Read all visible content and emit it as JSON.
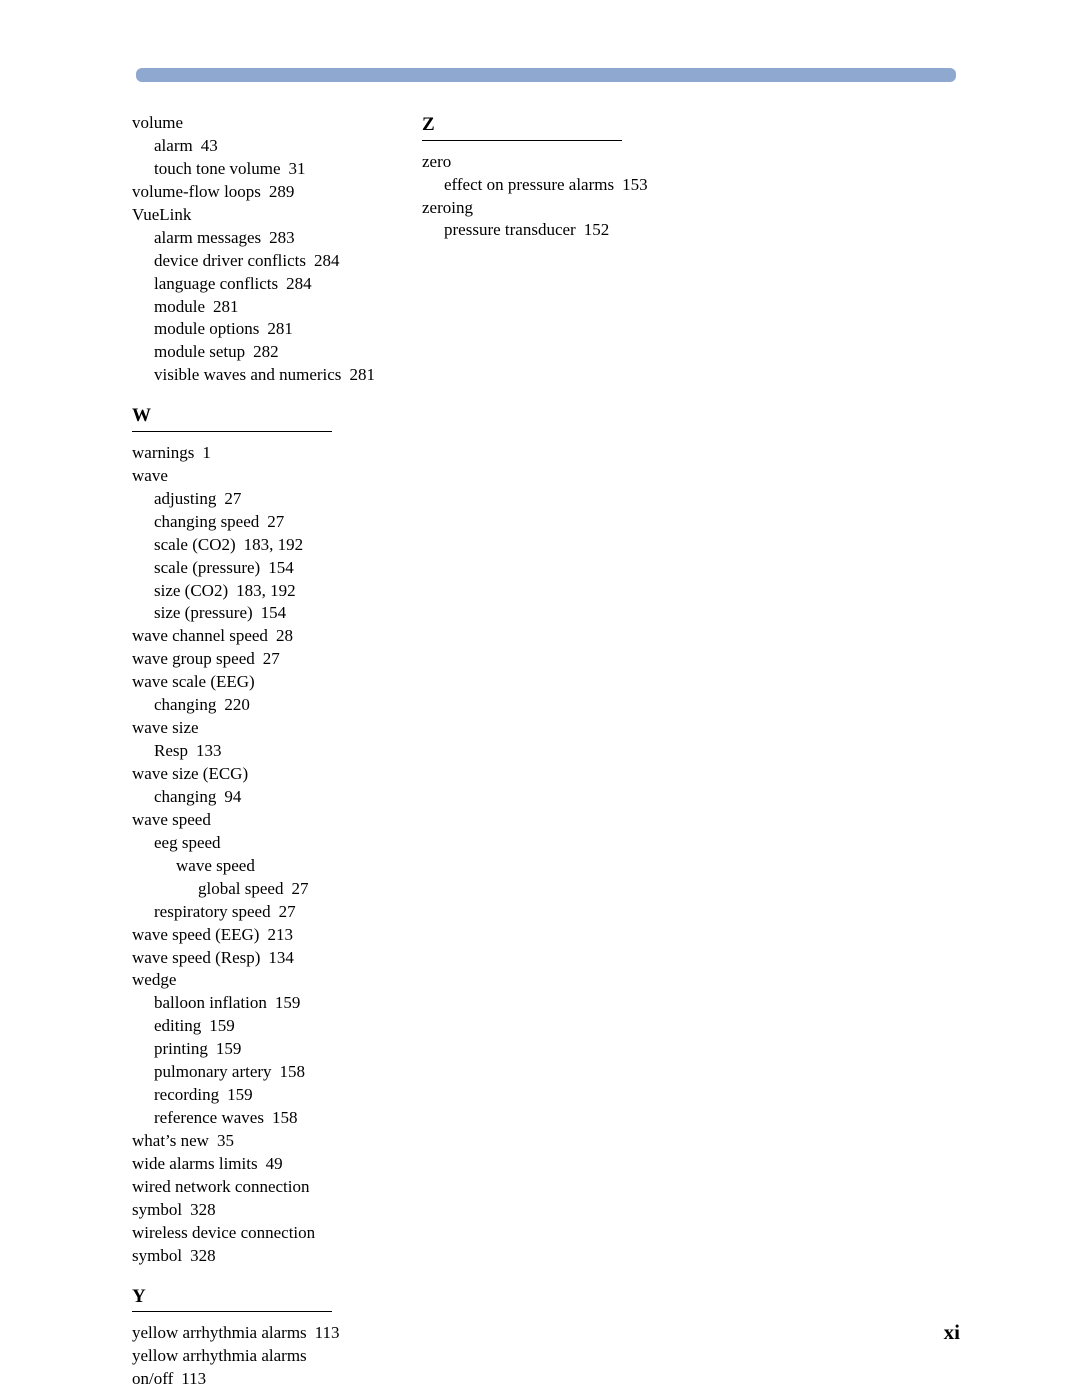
{
  "header_bar_color": "#8fa8d0",
  "page_number": "xi",
  "columns": [
    {
      "items": [
        {
          "type": "entry",
          "level": 0,
          "text": "volume"
        },
        {
          "type": "entry",
          "level": 1,
          "text": "alarm",
          "pages": "43"
        },
        {
          "type": "entry",
          "level": 1,
          "text": "touch tone volume",
          "pages": "31"
        },
        {
          "type": "entry",
          "level": 0,
          "text": "volume-flow loops",
          "pages": "289"
        },
        {
          "type": "entry",
          "level": 0,
          "text": "VueLink"
        },
        {
          "type": "entry",
          "level": 1,
          "text": "alarm messages",
          "pages": "283"
        },
        {
          "type": "entry",
          "level": 1,
          "text": "device driver conflicts",
          "pages": "284"
        },
        {
          "type": "entry",
          "level": 1,
          "text": "language conflicts",
          "pages": "284"
        },
        {
          "type": "entry",
          "level": 1,
          "text": "module",
          "pages": "281"
        },
        {
          "type": "entry",
          "level": 1,
          "text": "module options",
          "pages": "281"
        },
        {
          "type": "entry",
          "level": 1,
          "text": "module setup",
          "pages": "282"
        },
        {
          "type": "entry",
          "level": 1,
          "text": "visible waves and numerics",
          "pages": "281"
        },
        {
          "type": "section",
          "letter": "W"
        },
        {
          "type": "entry",
          "level": 0,
          "text": "warnings",
          "pages": "1"
        },
        {
          "type": "entry",
          "level": 0,
          "text": "wave"
        },
        {
          "type": "entry",
          "level": 1,
          "text": "adjusting",
          "pages": "27"
        },
        {
          "type": "entry",
          "level": 1,
          "text": "changing speed",
          "pages": "27"
        },
        {
          "type": "entry",
          "level": 1,
          "text": "scale (CO2)",
          "pages": "183, 192"
        },
        {
          "type": "entry",
          "level": 1,
          "text": "scale (pressure)",
          "pages": "154"
        },
        {
          "type": "entry",
          "level": 1,
          "text": "size (CO2)",
          "pages": "183, 192"
        },
        {
          "type": "entry",
          "level": 1,
          "text": "size (pressure)",
          "pages": "154"
        },
        {
          "type": "entry",
          "level": 0,
          "text": "wave channel speed",
          "pages": "28"
        },
        {
          "type": "entry",
          "level": 0,
          "text": "wave group speed",
          "pages": "27"
        },
        {
          "type": "entry",
          "level": 0,
          "text": "wave scale (EEG)"
        },
        {
          "type": "entry",
          "level": 1,
          "text": "changing",
          "pages": "220"
        },
        {
          "type": "entry",
          "level": 0,
          "text": "wave size"
        },
        {
          "type": "entry",
          "level": 1,
          "text": "Resp",
          "pages": "133"
        },
        {
          "type": "entry",
          "level": 0,
          "text": "wave size (ECG)"
        },
        {
          "type": "entry",
          "level": 1,
          "text": "changing",
          "pages": "94"
        },
        {
          "type": "entry",
          "level": 0,
          "text": "wave speed"
        },
        {
          "type": "entry",
          "level": 1,
          "text": "eeg speed"
        },
        {
          "type": "entry",
          "level": 2,
          "text": "wave speed"
        },
        {
          "type": "entry",
          "level": 3,
          "text": "global speed",
          "pages": "27"
        },
        {
          "type": "entry",
          "level": 1,
          "text": "respiratory speed",
          "pages": "27"
        },
        {
          "type": "entry",
          "level": 0,
          "text": "wave speed (EEG)",
          "pages": "213"
        },
        {
          "type": "entry",
          "level": 0,
          "text": "wave speed (Resp)",
          "pages": "134"
        },
        {
          "type": "entry",
          "level": 0,
          "text": "wedge"
        },
        {
          "type": "entry",
          "level": 1,
          "text": "balloon inflation",
          "pages": "159"
        },
        {
          "type": "entry",
          "level": 1,
          "text": "editing",
          "pages": "159"
        },
        {
          "type": "entry",
          "level": 1,
          "text": "printing",
          "pages": "159"
        },
        {
          "type": "entry",
          "level": 1,
          "text": "pulmonary artery",
          "pages": "158"
        },
        {
          "type": "entry",
          "level": 1,
          "text": "recording",
          "pages": "159"
        },
        {
          "type": "entry",
          "level": 1,
          "text": "reference waves",
          "pages": "158"
        },
        {
          "type": "entry",
          "level": 0,
          "text": "what’s new",
          "pages": "35"
        },
        {
          "type": "entry",
          "level": 0,
          "text": "wide alarms limits",
          "pages": "49"
        },
        {
          "type": "entry",
          "level": 0,
          "text": "wired network connection symbol",
          "pages": "328"
        },
        {
          "type": "entry",
          "level": 0,
          "text": "wireless device connection symbol",
          "pages": "328"
        },
        {
          "type": "section",
          "letter": "Y"
        },
        {
          "type": "entry",
          "level": 0,
          "text": "yellow arrhythmia alarms",
          "pages": "113"
        },
        {
          "type": "entry",
          "level": 0,
          "text": "yellow arrhythmia alarms on/off",
          "pages": "113"
        }
      ]
    },
    {
      "items": [
        {
          "type": "section",
          "letter": "Z",
          "first": true
        },
        {
          "type": "entry",
          "level": 0,
          "text": "zero"
        },
        {
          "type": "entry",
          "level": 1,
          "text": "effect on pressure alarms",
          "pages": "153"
        },
        {
          "type": "entry",
          "level": 0,
          "text": "zeroing"
        },
        {
          "type": "entry",
          "level": 1,
          "text": "pressure transducer",
          "pages": "152"
        }
      ]
    }
  ]
}
